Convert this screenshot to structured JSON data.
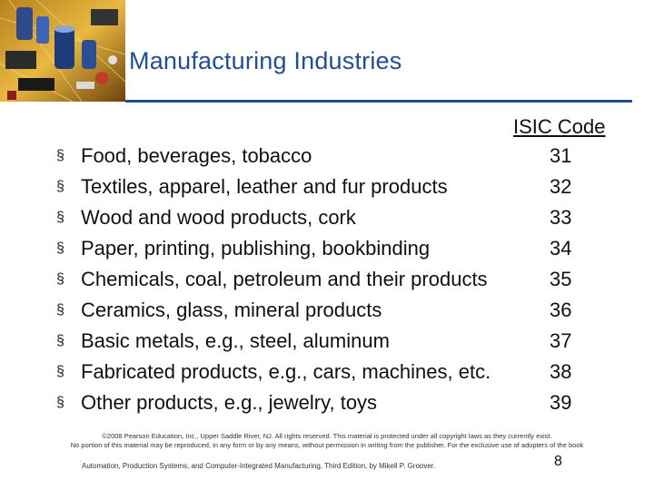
{
  "slide": {
    "title": "Manufacturing Industries",
    "column_header": "ISIC Code",
    "items": [
      {
        "label": "Food, beverages, tobacco",
        "code": "31"
      },
      {
        "label": "Textiles, apparel, leather and fur products",
        "code": "32"
      },
      {
        "label": "Wood and wood products, cork",
        "code": "33"
      },
      {
        "label": "Paper, printing, publishing, bookbinding",
        "code": "34"
      },
      {
        "label": "Chemicals, coal, petroleum and their products",
        "code": "35"
      },
      {
        "label": "Ceramics, glass, mineral products",
        "code": "36"
      },
      {
        "label": "Basic metals, e.g., steel, aluminum",
        "code": "37"
      },
      {
        "label": "Fabricated products, e.g., cars, machines, etc.",
        "code": "38"
      },
      {
        "label": "Other products, e.g., jewelry, toys",
        "code": "39"
      }
    ],
    "bullet_glyph": "§",
    "copyright_line1": "©2008 Pearson Education, Inc., Upper Saddle River, NJ. All rights reserved. This material is protected under all copyright laws as they currently exist.",
    "copyright_line2": "No portion of this material may be reproduced, in any form or by any means, without permission in writing from the publisher. For the exclusive use of adopters of the book",
    "footer_text": "Automation, Production Systems, and Computer-Integrated Manufacturing, Third Edition, by Mikell P. Groover.",
    "page_number": "8"
  },
  "colors": {
    "title": "#1f4e96",
    "rule": "#1f4e96"
  },
  "header_image": {
    "icon": "circuit-board-photo"
  }
}
